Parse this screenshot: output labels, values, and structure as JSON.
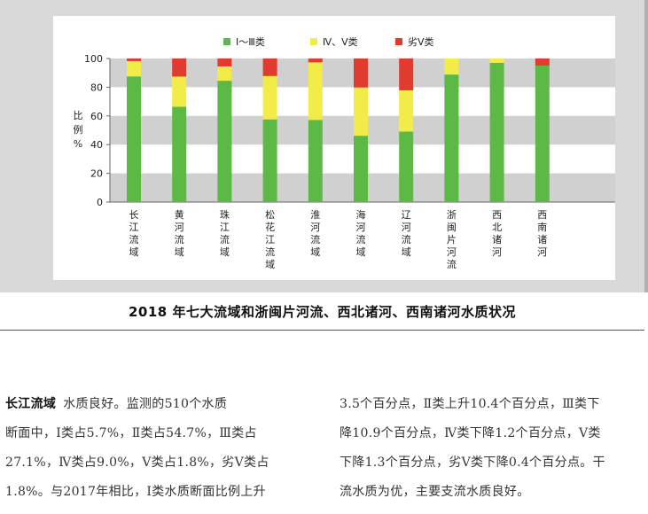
{
  "caption": "2018 年七大流域和浙闽片河流、西北诸河、西南诸河水质状况",
  "chart_data": {
    "type": "bar",
    "stacked": true,
    "ylabel": "比例%",
    "ylabel_chars": [
      "比",
      "例",
      "%"
    ],
    "ylim": [
      0,
      100
    ],
    "yticks": [
      "0",
      "20",
      "40",
      "60",
      "80",
      "100"
    ],
    "grid": "alternating horizontal bands",
    "legend_position": "top",
    "categories": [
      "长江流域",
      "黄河流域",
      "珠江流域",
      "松花江流域",
      "淮河流域",
      "海河流域",
      "辽河流域",
      "浙闽片河流",
      "西北诸河",
      "西南诸河"
    ],
    "series": [
      {
        "name": "Ⅰ～Ⅲ类",
        "color": "#5cb946",
        "values": [
          87.5,
          66.4,
          84.5,
          57.6,
          57.2,
          46.2,
          49.1,
          88.8,
          97.0,
          95.1
        ]
      },
      {
        "name": "Ⅳ、Ⅴ类",
        "color": "#f2ec48",
        "values": [
          10.7,
          21.0,
          10.0,
          30.2,
          40.1,
          33.6,
          28.7,
          11.2,
          3.0,
          0.0
        ]
      },
      {
        "name": "劣Ⅴ类",
        "color": "#e03b2e",
        "values": [
          1.8,
          12.6,
          5.5,
          12.2,
          2.7,
          20.2,
          22.2,
          0.0,
          0.0,
          4.9
        ]
      }
    ]
  },
  "text": {
    "left_heading": "长江流域",
    "left_lines": [
      "水质良好。监测的510个水质",
      "断面中，Ⅰ类占5.7%，Ⅱ类占54.7%，Ⅲ类占",
      "27.1%，Ⅳ类占9.0%，Ⅴ类占1.8%，劣Ⅴ类占",
      "1.8%。与2017年相比，Ⅰ类水质断面比例上升"
    ],
    "right_lines": [
      "3.5个百分点，Ⅱ类上升10.4个百分点，Ⅲ类下",
      "降10.9个百分点，Ⅳ类下降1.2个百分点，Ⅴ类",
      "下降1.3个百分点，劣Ⅴ类下降0.4个百分点。干",
      "流水质为优，主要支流水质良好。"
    ]
  }
}
